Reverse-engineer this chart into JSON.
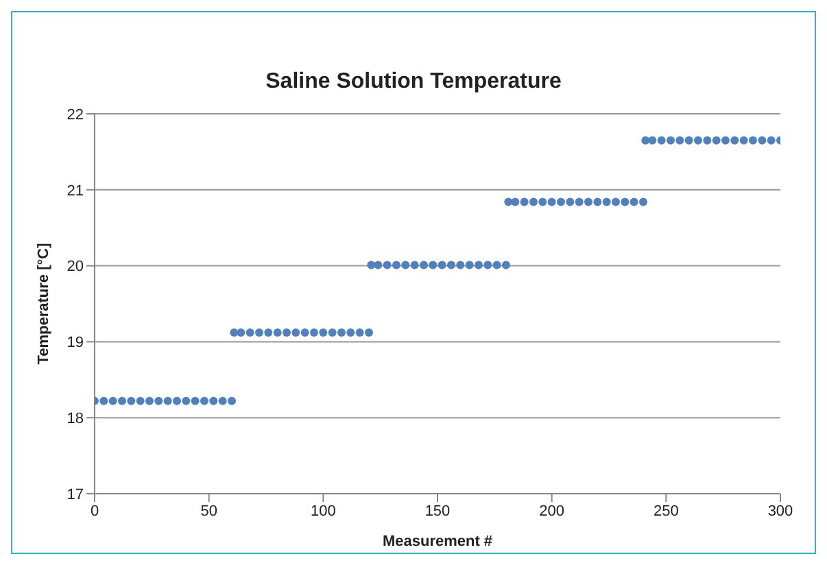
{
  "chart_data": {
    "type": "scatter",
    "title": "Saline Solution Temperature",
    "xlabel": "Measurement #",
    "ylabel": "Temperature [°C]",
    "x": [
      0,
      4,
      8,
      12,
      16,
      20,
      24,
      28,
      32,
      36,
      40,
      44,
      48,
      52,
      56,
      60,
      61,
      64,
      68,
      72,
      76,
      80,
      84,
      88,
      92,
      96,
      100,
      104,
      108,
      112,
      116,
      120,
      121,
      124,
      128,
      132,
      136,
      140,
      144,
      148,
      152,
      156,
      160,
      164,
      168,
      172,
      176,
      180,
      181,
      184,
      188,
      192,
      196,
      200,
      204,
      208,
      212,
      216,
      220,
      224,
      228,
      232,
      236,
      240,
      241,
      244,
      248,
      252,
      256,
      260,
      264,
      268,
      272,
      276,
      280,
      284,
      288,
      292,
      296,
      300
    ],
    "series": [
      {
        "color": "#4f81bd",
        "values": [
          18.22,
          18.22,
          18.22,
          18.22,
          18.22,
          18.22,
          18.22,
          18.22,
          18.22,
          18.22,
          18.22,
          18.22,
          18.22,
          18.22,
          18.22,
          18.22,
          19.12,
          19.12,
          19.12,
          19.12,
          19.12,
          19.12,
          19.12,
          19.12,
          19.12,
          19.12,
          19.12,
          19.12,
          19.12,
          19.12,
          19.12,
          19.12,
          20.01,
          20.01,
          20.01,
          20.01,
          20.01,
          20.01,
          20.01,
          20.01,
          20.01,
          20.01,
          20.01,
          20.01,
          20.01,
          20.01,
          20.01,
          20.01,
          20.84,
          20.84,
          20.84,
          20.84,
          20.84,
          20.84,
          20.84,
          20.84,
          20.84,
          20.84,
          20.84,
          20.84,
          20.84,
          20.84,
          20.84,
          20.84,
          21.65,
          21.65,
          21.65,
          21.65,
          21.65,
          21.65,
          21.65,
          21.65,
          21.65,
          21.65,
          21.65,
          21.65,
          21.65,
          21.65,
          21.65,
          21.65
        ]
      }
    ],
    "xlim": [
      0,
      300
    ],
    "xticks": [
      0,
      50,
      100,
      150,
      200,
      250,
      300
    ],
    "ylim": [
      17,
      22
    ],
    "yticks": [
      17,
      18,
      19,
      20,
      21,
      22
    ],
    "grid": "y",
    "marker": "circle",
    "legend": false
  }
}
